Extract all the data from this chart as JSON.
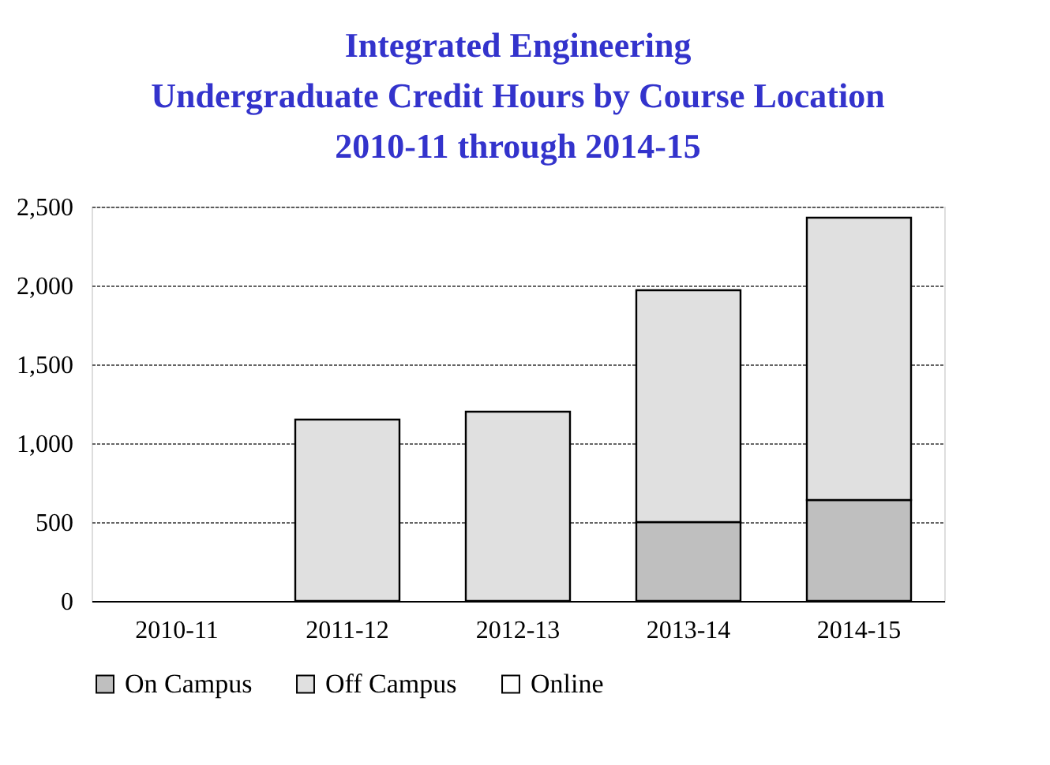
{
  "chart_data": {
    "type": "bar",
    "stacked": true,
    "title": "Integrated Engineering\nUndergraduate Credit Hours by Course Location\n2010-11 through 2014-15",
    "categories": [
      "2010-11",
      "2011-12",
      "2012-13",
      "2013-14",
      "2014-15"
    ],
    "series": [
      {
        "name": "On Campus",
        "color": "#bfbfbf",
        "values": [
          null,
          null,
          null,
          500,
          640
        ]
      },
      {
        "name": "Off Campus",
        "color": "#e0e0e0",
        "values": [
          null,
          1150,
          1200,
          1470,
          1790
        ]
      },
      {
        "name": "Online",
        "color": "#ffffff",
        "values": [
          null,
          null,
          null,
          null,
          null
        ]
      }
    ],
    "ylim": [
      0,
      2500
    ],
    "yticks": [
      0,
      500,
      {
        "value": 1000,
        "label": "1,000"
      },
      {
        "value": 1500,
        "label": "1,500"
      },
      {
        "value": 2000,
        "label": "2,000"
      },
      {
        "value": 2500,
        "label": "2,500"
      }
    ],
    "grid": "y",
    "legend": "bottom"
  }
}
